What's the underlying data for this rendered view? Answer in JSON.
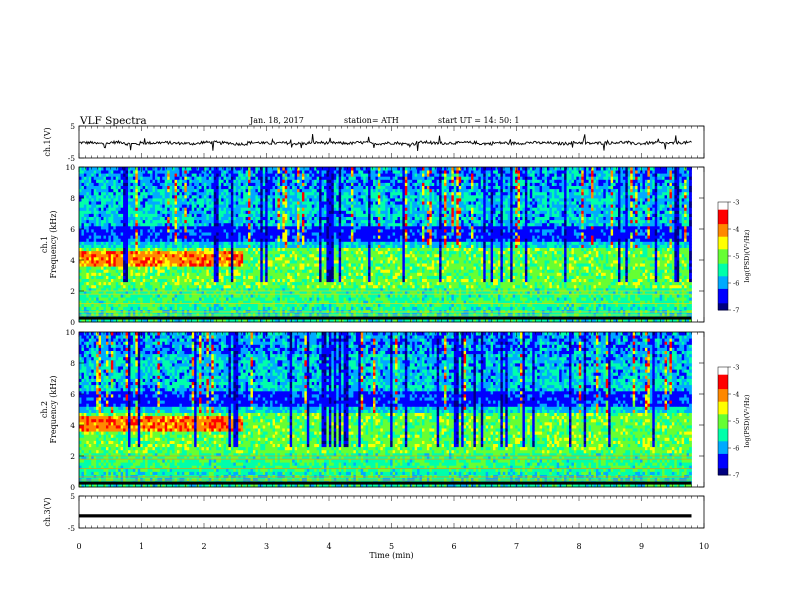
{
  "header": {
    "title": "VLF  Spectra",
    "date": "Jan. 18, 2017",
    "station": "station= ATH",
    "start": "start  UT  =   14: 50: 1"
  },
  "chart_data": [
    {
      "type": "line",
      "ylabel": "ch.1(V)",
      "ylim": [
        -5,
        5
      ],
      "y_ticks": [
        "5",
        "-5"
      ],
      "description_values": "voltage trace around -0.3 V with small fluctuations and spikes",
      "y": [
        -0.2,
        -0.5,
        -0.1,
        -0.6,
        -0.3,
        -0.2,
        -0.4,
        -0.5,
        -0.1,
        -0.3,
        -0.6,
        -0.2,
        -0.4,
        -0.3,
        -0.5,
        -0.2,
        -0.3,
        -0.4,
        -0.2,
        -0.5,
        -0.3,
        -0.6,
        -0.1,
        -0.4,
        -0.3,
        -0.2,
        -0.5,
        -0.3,
        -0.4,
        -0.2,
        -0.3,
        -0.5,
        -0.2,
        -0.4,
        -0.3,
        -0.1,
        -0.5,
        -0.3,
        -0.4,
        -0.2,
        -0.3
      ]
    },
    {
      "type": "heatmap",
      "ylabel": "ch.1\nFrequency  (kHz)",
      "ylim": [
        0,
        10
      ],
      "y_ticks": [
        "0",
        "2",
        "4",
        "6",
        "8",
        "10"
      ],
      "colorbar": {
        "label": "log(PSD)(V²/Hz)",
        "ticks": [
          "-3",
          "-4",
          "-5",
          "-6",
          "-7"
        ],
        "range": [
          -7,
          -3
        ]
      }
    },
    {
      "type": "heatmap",
      "ylabel": "ch.2\nFrequency  (kHz)",
      "ylim": [
        0,
        10
      ],
      "y_ticks": [
        "0",
        "2",
        "4",
        "6",
        "8",
        "10"
      ],
      "colorbar": {
        "label": "log(PSD)(V²/Hz)",
        "ticks": [
          "-3",
          "-4",
          "-5",
          "-6",
          "-7"
        ],
        "range": [
          -7,
          -3
        ]
      }
    },
    {
      "type": "line",
      "ylabel": "ch.3(V)",
      "ylim": [
        -5,
        5
      ],
      "y_ticks": [
        "5",
        "-5"
      ],
      "y": [
        -1.2,
        -1.2,
        -1.2,
        -1.2,
        -1.2,
        -1.2,
        -1.2,
        -1.2,
        -1.2,
        -1.2,
        -1.2
      ]
    }
  ],
  "xaxis": {
    "label": "Time  (min)",
    "ticks": [
      "0",
      "1",
      "2",
      "3",
      "4",
      "5",
      "6",
      "7",
      "8",
      "9",
      "10"
    ],
    "xlim": [
      0,
      10
    ],
    "data_end": 9.8
  },
  "colors": {
    "colormap": [
      "#000080",
      "#0000ff",
      "#00aaff",
      "#00ffaa",
      "#66ff33",
      "#ffff00",
      "#ff8800",
      "#ff0000",
      "#ffffff"
    ]
  }
}
